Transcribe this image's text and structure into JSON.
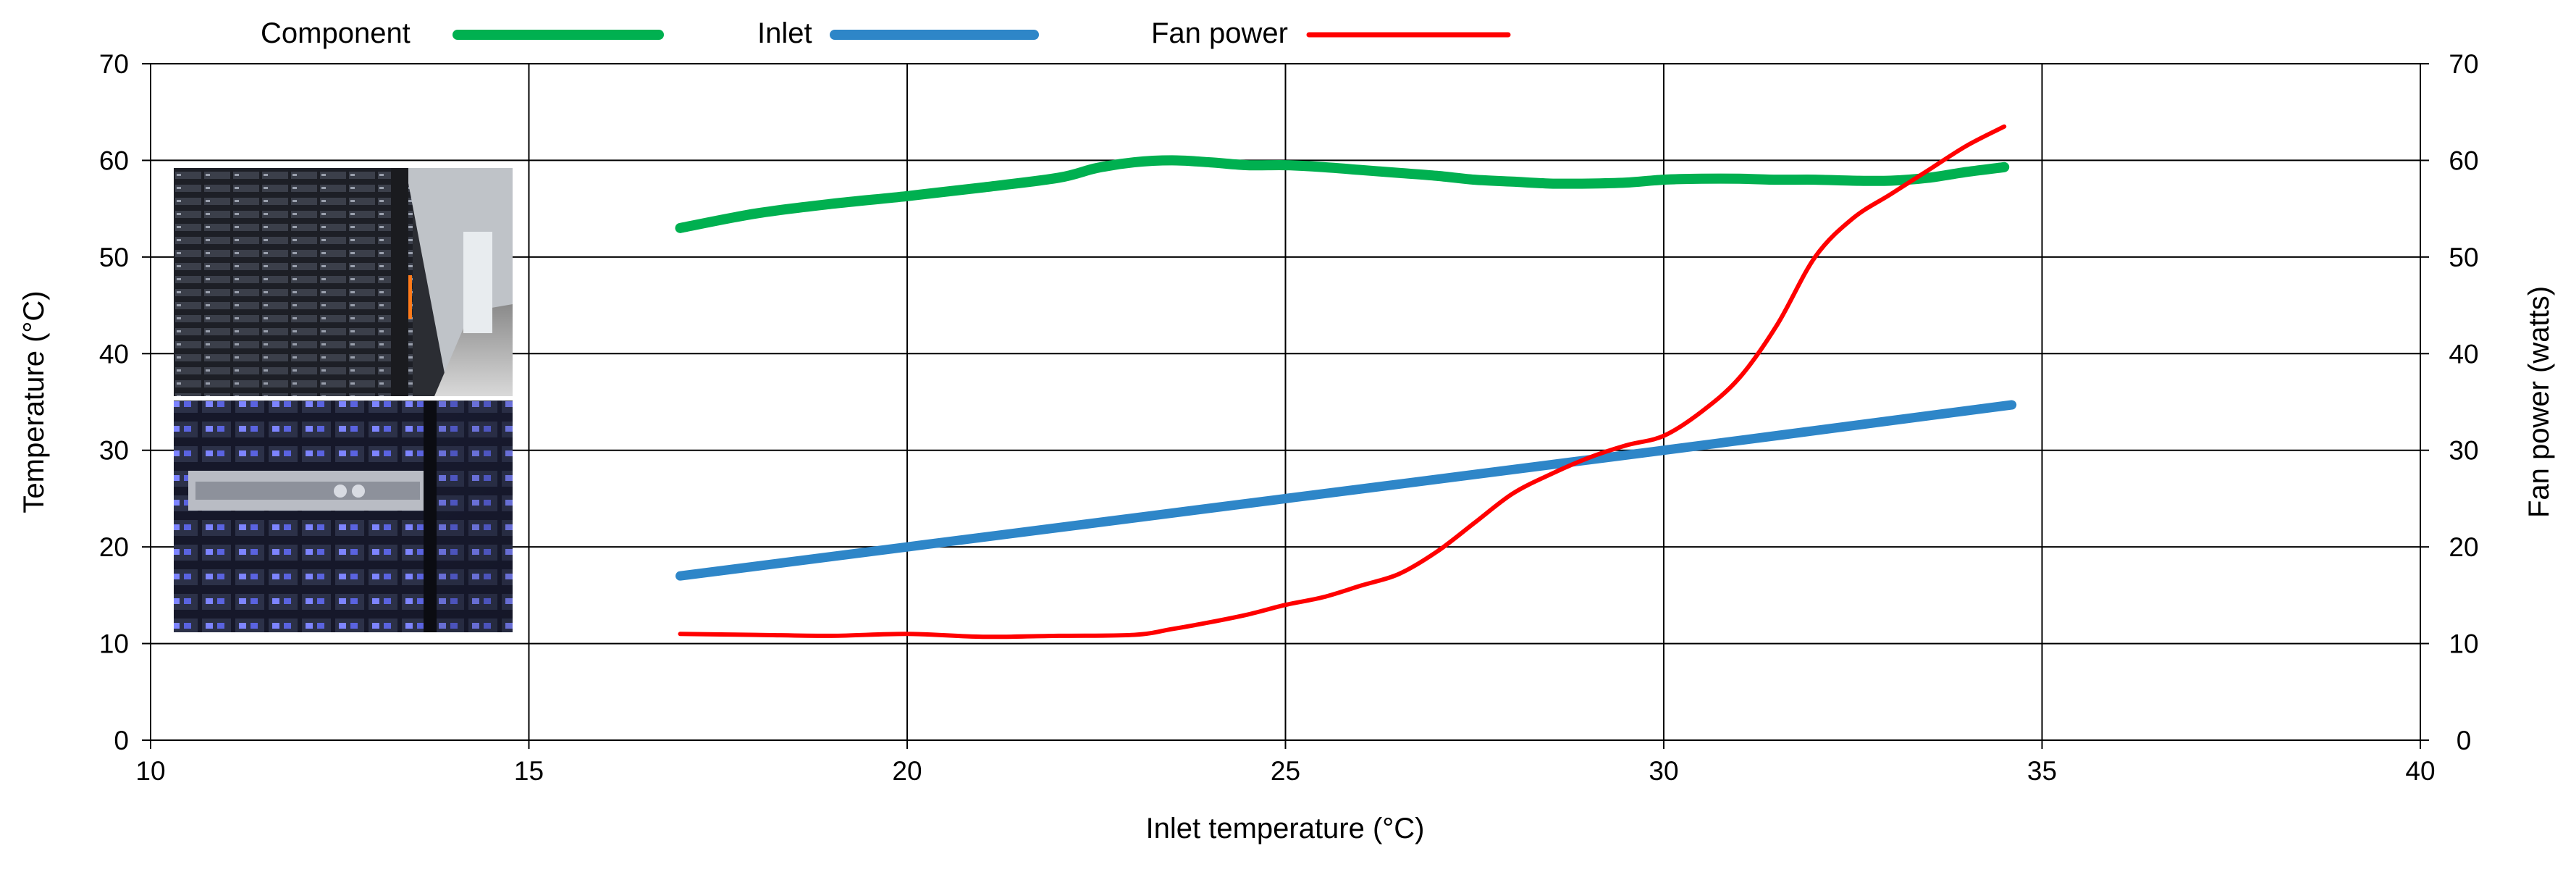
{
  "chart_data": {
    "type": "line",
    "title": "",
    "xlabel": "Inlet temperature (°C)",
    "ylabel": "Temperature (°C)",
    "y2label": "Fan power (watts)",
    "xlim": [
      10,
      40
    ],
    "ylim": [
      0,
      70
    ],
    "y2lim": [
      0,
      70
    ],
    "xticks": [
      10,
      15,
      20,
      25,
      30,
      35,
      40
    ],
    "yticks": [
      0,
      10,
      20,
      30,
      40,
      50,
      60,
      70
    ],
    "y2ticks": [
      0,
      10,
      20,
      30,
      40,
      50,
      60,
      70
    ],
    "grid": true,
    "legend_position": "top",
    "series": [
      {
        "name": "Component",
        "axis": "left",
        "color": "#00B050",
        "x": [
          17,
          18,
          19,
          20,
          21,
          22,
          22.5,
          23,
          23.5,
          24,
          24.5,
          25,
          25.5,
          26,
          26.5,
          27,
          27.5,
          28,
          28.5,
          29,
          29.5,
          30,
          30.5,
          31,
          31.5,
          32,
          32.5,
          33,
          33.5,
          34,
          34.5
        ],
        "values": [
          53,
          54.5,
          55.5,
          56.3,
          57.2,
          58.2,
          59.2,
          59.8,
          60,
          59.8,
          59.5,
          59.5,
          59.3,
          59,
          58.7,
          58.4,
          58,
          57.8,
          57.6,
          57.6,
          57.7,
          58,
          58.1,
          58.1,
          58,
          58,
          57.9,
          57.9,
          58.2,
          58.8,
          59.3
        ]
      },
      {
        "name": "Inlet",
        "axis": "left",
        "color": "#2E86C8",
        "x": [
          17,
          20,
          25,
          30,
          34.6
        ],
        "values": [
          17,
          20,
          25,
          30,
          34.7
        ]
      },
      {
        "name": "Fan power",
        "axis": "right",
        "color": "#FF0000",
        "x": [
          17,
          18,
          19,
          20,
          21,
          22,
          23,
          23.5,
          24,
          24.5,
          25,
          25.5,
          26,
          26.5,
          27,
          27.5,
          28,
          28.5,
          29,
          29.5,
          30,
          30.5,
          31,
          31.5,
          32,
          32.5,
          33,
          33.5,
          34,
          34.5
        ],
        "values": [
          11,
          10.9,
          10.8,
          11,
          10.7,
          10.8,
          10.9,
          11.5,
          12.2,
          13,
          14,
          14.8,
          16,
          17.2,
          19.5,
          22.5,
          25.5,
          27.5,
          29.2,
          30.5,
          31.5,
          34,
          37.5,
          43,
          50,
          54,
          56.5,
          59,
          61.5,
          63.5
        ]
      }
    ],
    "inset_images": [
      {
        "name": "server-aisle-photo",
        "description_icon": "data-center-aisle"
      },
      {
        "name": "server-rack-photo",
        "description_icon": "server-rack"
      }
    ]
  }
}
